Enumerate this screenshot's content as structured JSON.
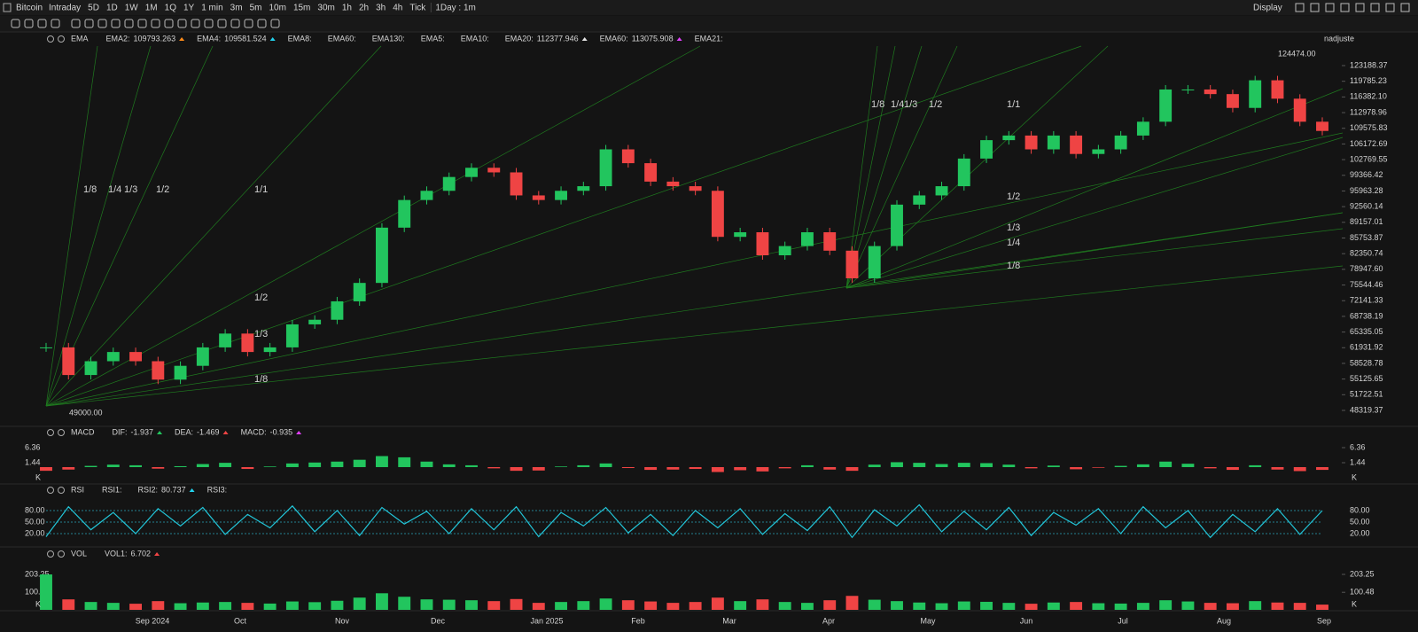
{
  "toolbar": {
    "symbol": "Bitcoin",
    "periods": [
      "Intraday",
      "5D",
      "1D",
      "1W",
      "1M",
      "1Q",
      "1Y",
      "1 min",
      "3m",
      "5m",
      "10m",
      "15m",
      "30m",
      "1h",
      "2h",
      "3h",
      "4h",
      "Tick"
    ],
    "active_period": "1D",
    "interval": "1Day : 1m",
    "display": "Display"
  },
  "main": {
    "indicator": "EMA",
    "legend": [
      {
        "name": "EMA2:",
        "value": 109793.263,
        "color": "#ff8c1a"
      },
      {
        "name": "EMA4:",
        "value": 109581.524,
        "color": "#22d3ee"
      },
      {
        "name": "EMA8:",
        "color": "#e040fb"
      },
      {
        "name": "EMA60:",
        "color": "#3b82f6"
      },
      {
        "name": "EMA130:",
        "color": "#22c55e"
      },
      {
        "name": "EMA5:",
        "color": "#ef4444"
      },
      {
        "name": "EMA10:",
        "color": "#2dd4bf"
      },
      {
        "name": "EMA20:",
        "value": 112377.946,
        "color": "#e5e5e5"
      },
      {
        "name": "EMA60:",
        "value": 113075.908,
        "color": "#e040fb"
      },
      {
        "name": "EMA21:",
        "color": "#eab308"
      }
    ],
    "adjust": "nadjuste",
    "high_label": "124474.00",
    "low_label": "49000.00",
    "fan_labels": [
      "1/8",
      "1/4",
      "1/3",
      "1/2",
      "1/1",
      "1/2",
      "1/3",
      "1/8",
      "1/8",
      "1/4",
      "1/3",
      "1/2",
      "1/1",
      "1/2",
      "1/3",
      "1/4",
      "1/8"
    ]
  },
  "panes": [
    {
      "indicator": "MACD",
      "legend": [
        {
          "name": "DIF:",
          "value": -1.937,
          "color": "#22c55e"
        },
        {
          "name": "DEA:",
          "value": -1.469,
          "color": "#ef4444"
        },
        {
          "name": "MACD:",
          "value": -0.935,
          "color": "#e040fb"
        }
      ],
      "unit": "K"
    },
    {
      "indicator": "RSI",
      "legend": [
        {
          "name": "RSI1:",
          "color": "#ef4444"
        },
        {
          "name": "RSI2:",
          "value": 80.737,
          "color": "#22d3ee"
        },
        {
          "name": "RSI3:",
          "color": "#cccccc"
        }
      ]
    },
    {
      "indicator": "VOL",
      "legend": [
        {
          "name": "VOL1:",
          "value": 6.702,
          "color": "#ef4444"
        }
      ],
      "unit": "K"
    }
  ],
  "x_axis": [
    "Sep 2024",
    "Oct",
    "Nov",
    "Dec",
    "Jan 2025",
    "Feb",
    "Mar",
    "Apr",
    "May",
    "Jun",
    "Jul",
    "Aug",
    "Sep"
  ],
  "chart_data": [
    {
      "type": "candlestick",
      "up_color": "#22c55e",
      "down_color": "#ef4444",
      "ylim": [
        45047,
        127422
      ],
      "yticks": [
        123188.37,
        119785.23,
        {
          "value": 116382.1,
          "label": "116382.10"
        },
        112978.96,
        109575.83,
        106172.69,
        102769.55,
        99366.42,
        95963.28,
        {
          "value": 92560.14,
          "label": "92560.14"
        },
        89157.01,
        85753.87,
        82350.74,
        {
          "value": 78947.6,
          "label": "78947.60"
        },
        75544.46,
        72141.33,
        68738.19,
        65335.05,
        61931.92,
        58528.78,
        55125.65,
        51722.51,
        48319.37
      ],
      "values": [
        62000,
        56000,
        59000,
        61000,
        59000,
        55000,
        58000,
        62000,
        65000,
        61000,
        62000,
        67000,
        68000,
        72000,
        76000,
        88000,
        94000,
        96000,
        99000,
        101000,
        100000,
        95000,
        94000,
        96000,
        97000,
        105000,
        102000,
        98000,
        97000,
        96000,
        86000,
        87000,
        82000,
        84000,
        87000,
        83000,
        77000,
        84000,
        93000,
        95000,
        97000,
        103000,
        107000,
        108000,
        105000,
        108000,
        104000,
        105000,
        108000,
        111000,
        118000,
        118000,
        117000,
        114000,
        120000,
        116000,
        111000,
        109000
      ]
    },
    {
      "type": "bar",
      "up_color": "#22c55e",
      "down_color": "#ef4444",
      "ylim": [
        -5.21,
        9.25
      ],
      "yticks": [
        6.36,
        1.44
      ],
      "values": [
        -1.2,
        -0.8,
        0.4,
        0.8,
        0.6,
        -0.5,
        0.3,
        1.0,
        1.4,
        -0.6,
        0.2,
        1.2,
        1.5,
        1.8,
        2.4,
        3.6,
        3.2,
        1.8,
        0.9,
        0.6,
        -0.4,
        -1.2,
        -1.1,
        0.2,
        0.6,
        1.2,
        -0.3,
        -0.9,
        -0.8,
        -0.6,
        -1.6,
        -1.0,
        -1.4,
        -0.4,
        0.6,
        -0.8,
        -1.2,
        0.8,
        1.6,
        1.4,
        1.0,
        1.4,
        1.3,
        0.8,
        -0.4,
        0.5,
        -0.7,
        -0.2,
        0.4,
        0.9,
        1.8,
        1.1,
        -0.4,
        -0.9,
        0.6,
        -0.8,
        -1.3,
        -0.9
      ]
    },
    {
      "type": "line",
      "color": "#22c5d8",
      "ylim": [
        -3.1,
        112.3
      ],
      "yticks": [
        {
          "value": 80,
          "label": "80.00"
        },
        {
          "value": 50,
          "label": "50.00"
        },
        {
          "value": 20,
          "label": "20.00"
        }
      ],
      "values": [
        12,
        90,
        30,
        75,
        20,
        85,
        40,
        88,
        18,
        70,
        35,
        92,
        25,
        80,
        15,
        88,
        45,
        78,
        20,
        85,
        30,
        90,
        12,
        75,
        40,
        88,
        22,
        70,
        15,
        80,
        35,
        85,
        18,
        72,
        28,
        90,
        10,
        82,
        40,
        95,
        25,
        78,
        30,
        88,
        15,
        75,
        42,
        85,
        20,
        90,
        35,
        80,
        10,
        70,
        25,
        85,
        18,
        80
      ]
    },
    {
      "type": "bar",
      "up_color": "#22c55e",
      "down_color": "#ef4444",
      "ylim": [
        0,
        269.3
      ],
      "yticks": [
        203.25,
        100.48
      ],
      "values": [
        203,
        60,
        45,
        40,
        35,
        50,
        38,
        42,
        45,
        40,
        36,
        48,
        44,
        52,
        70,
        95,
        75,
        60,
        58,
        55,
        50,
        62,
        40,
        45,
        50,
        65,
        55,
        48,
        40,
        45,
        70,
        50,
        60,
        45,
        40,
        55,
        80,
        58,
        50,
        42,
        38,
        48,
        46,
        40,
        35,
        42,
        45,
        38,
        36,
        40,
        55,
        48,
        40,
        38,
        50,
        42,
        40,
        30
      ]
    }
  ]
}
